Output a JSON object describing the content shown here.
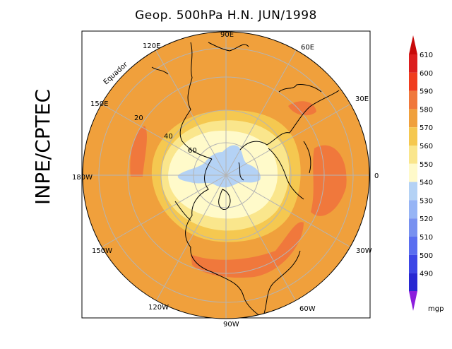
{
  "title": "Geop. 500hPa H.N. JUN/1998",
  "side_label": "INPE/CPTEC",
  "equator_label": "Equador",
  "longitude_labels": [
    "90E",
    "60E",
    "30E",
    "0",
    "30W",
    "60W",
    "90W",
    "120W",
    "150W",
    "180W",
    "150E",
    "120E"
  ],
  "latitude_labels": [
    "20",
    "40",
    "60"
  ],
  "colorbar": {
    "unit": "mgp",
    "levels": [
      {
        "value": "610",
        "color": "#dc1e1e"
      },
      {
        "value": "600",
        "color": "#f03c1e"
      },
      {
        "value": "590",
        "color": "#f0783c"
      },
      {
        "value": "580",
        "color": "#f0a03c"
      },
      {
        "value": "570",
        "color": "#f5c850"
      },
      {
        "value": "560",
        "color": "#fae68c"
      },
      {
        "value": "550",
        "color": "#fffaca"
      },
      {
        "value": "540",
        "color": "#b4d2f5"
      },
      {
        "value": "530",
        "color": "#96b4f5"
      },
      {
        "value": "520",
        "color": "#7891f0"
      },
      {
        "value": "510",
        "color": "#5a6ef0"
      },
      {
        "value": "500",
        "color": "#3c46e6"
      },
      {
        "value": "490",
        "color": "#2828d2"
      }
    ],
    "top_color": "#c80a0a",
    "bottom_color": "#8c1edc"
  }
}
